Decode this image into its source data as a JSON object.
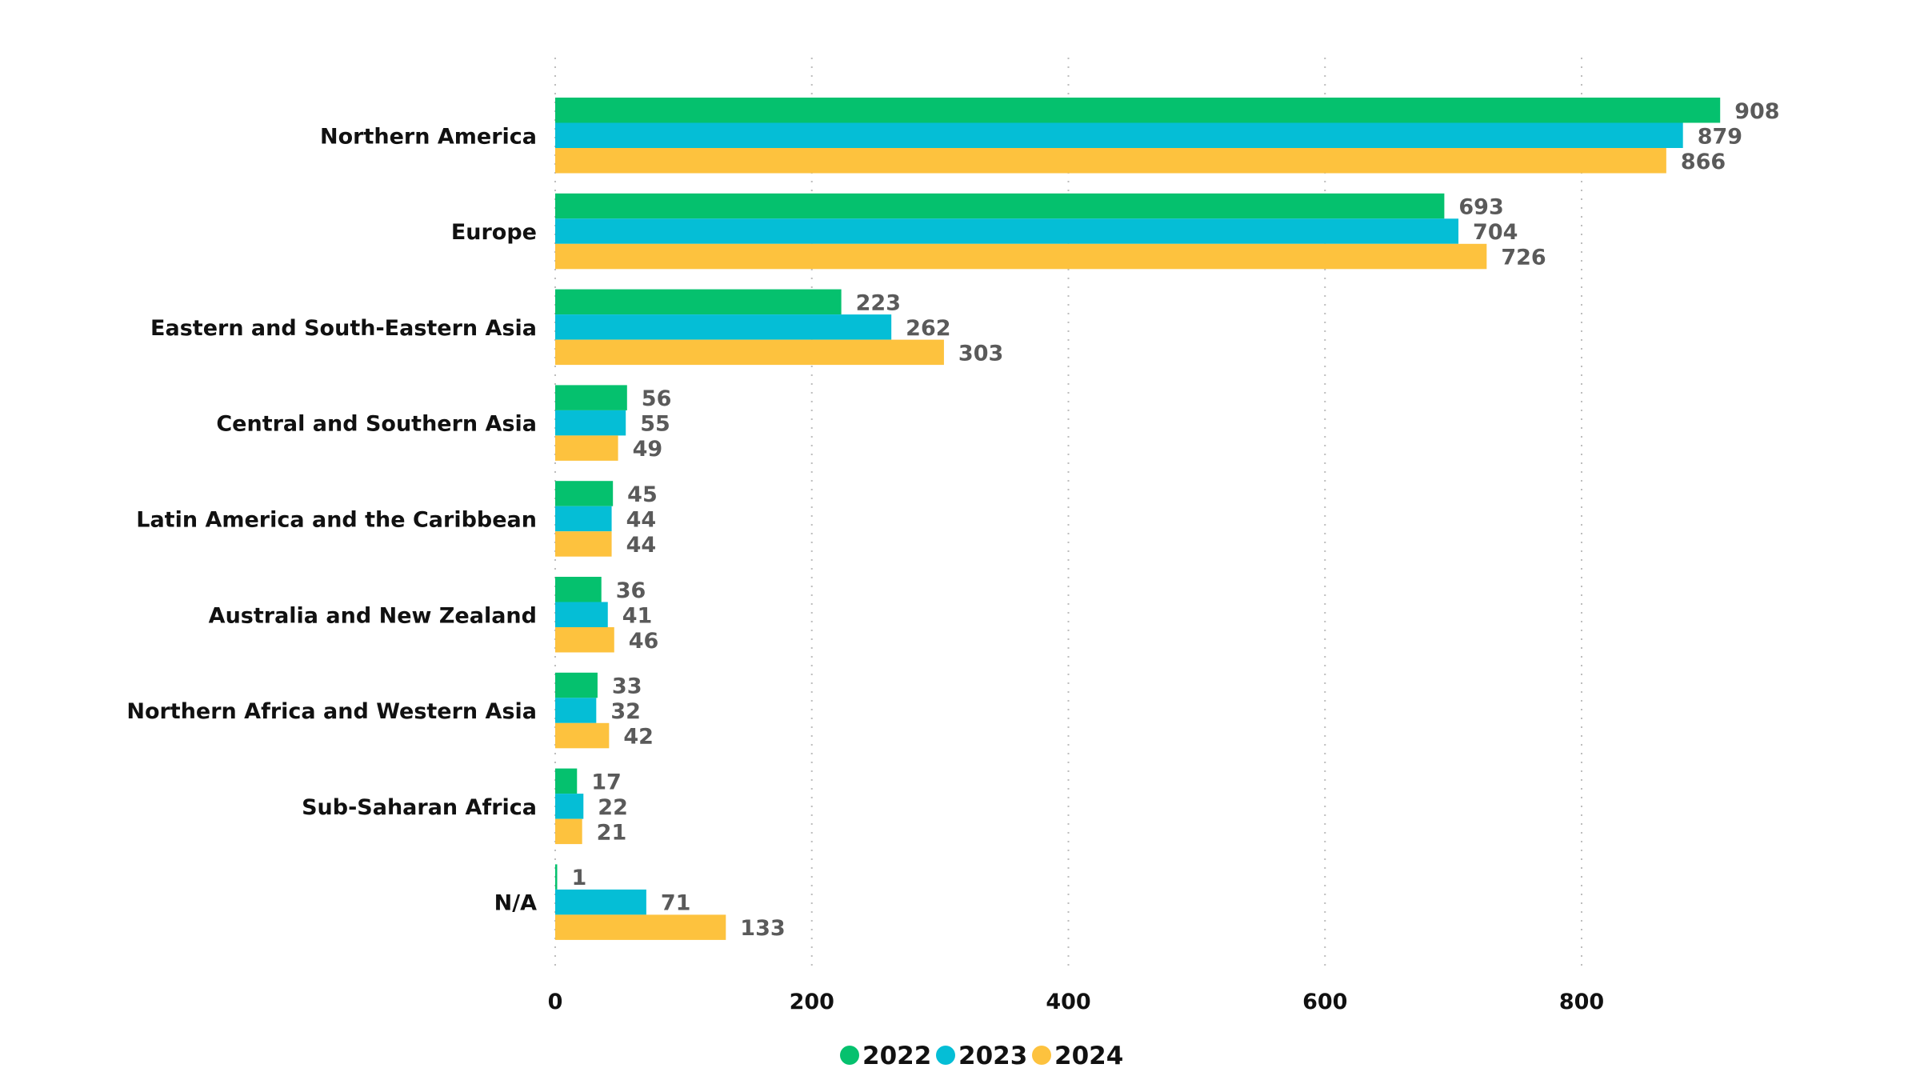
{
  "chart_data": {
    "type": "bar",
    "orientation": "horizontal",
    "title": "",
    "xlabel": "",
    "ylabel": "",
    "xlim": [
      0,
      900
    ],
    "xticks": [
      0,
      200,
      400,
      600,
      800
    ],
    "grid": true,
    "legend_position": "bottom-center",
    "categories": [
      "Northern America",
      "Europe",
      "Eastern and South-Eastern Asia",
      "Central and Southern Asia",
      "Latin America and the Caribbean",
      "Australia and New Zealand",
      "Northern Africa and Western Asia",
      "Sub-Saharan Africa",
      "N/A"
    ],
    "series": [
      {
        "name": "2022",
        "color": "#05c16e",
        "values": [
          908,
          693,
          223,
          56,
          45,
          36,
          33,
          17,
          1
        ]
      },
      {
        "name": "2023",
        "color": "#05bed6",
        "values": [
          879,
          704,
          262,
          55,
          44,
          41,
          32,
          22,
          71
        ]
      },
      {
        "name": "2024",
        "color": "#fdc23e",
        "values": [
          866,
          726,
          303,
          49,
          44,
          46,
          42,
          21,
          133
        ]
      }
    ]
  }
}
